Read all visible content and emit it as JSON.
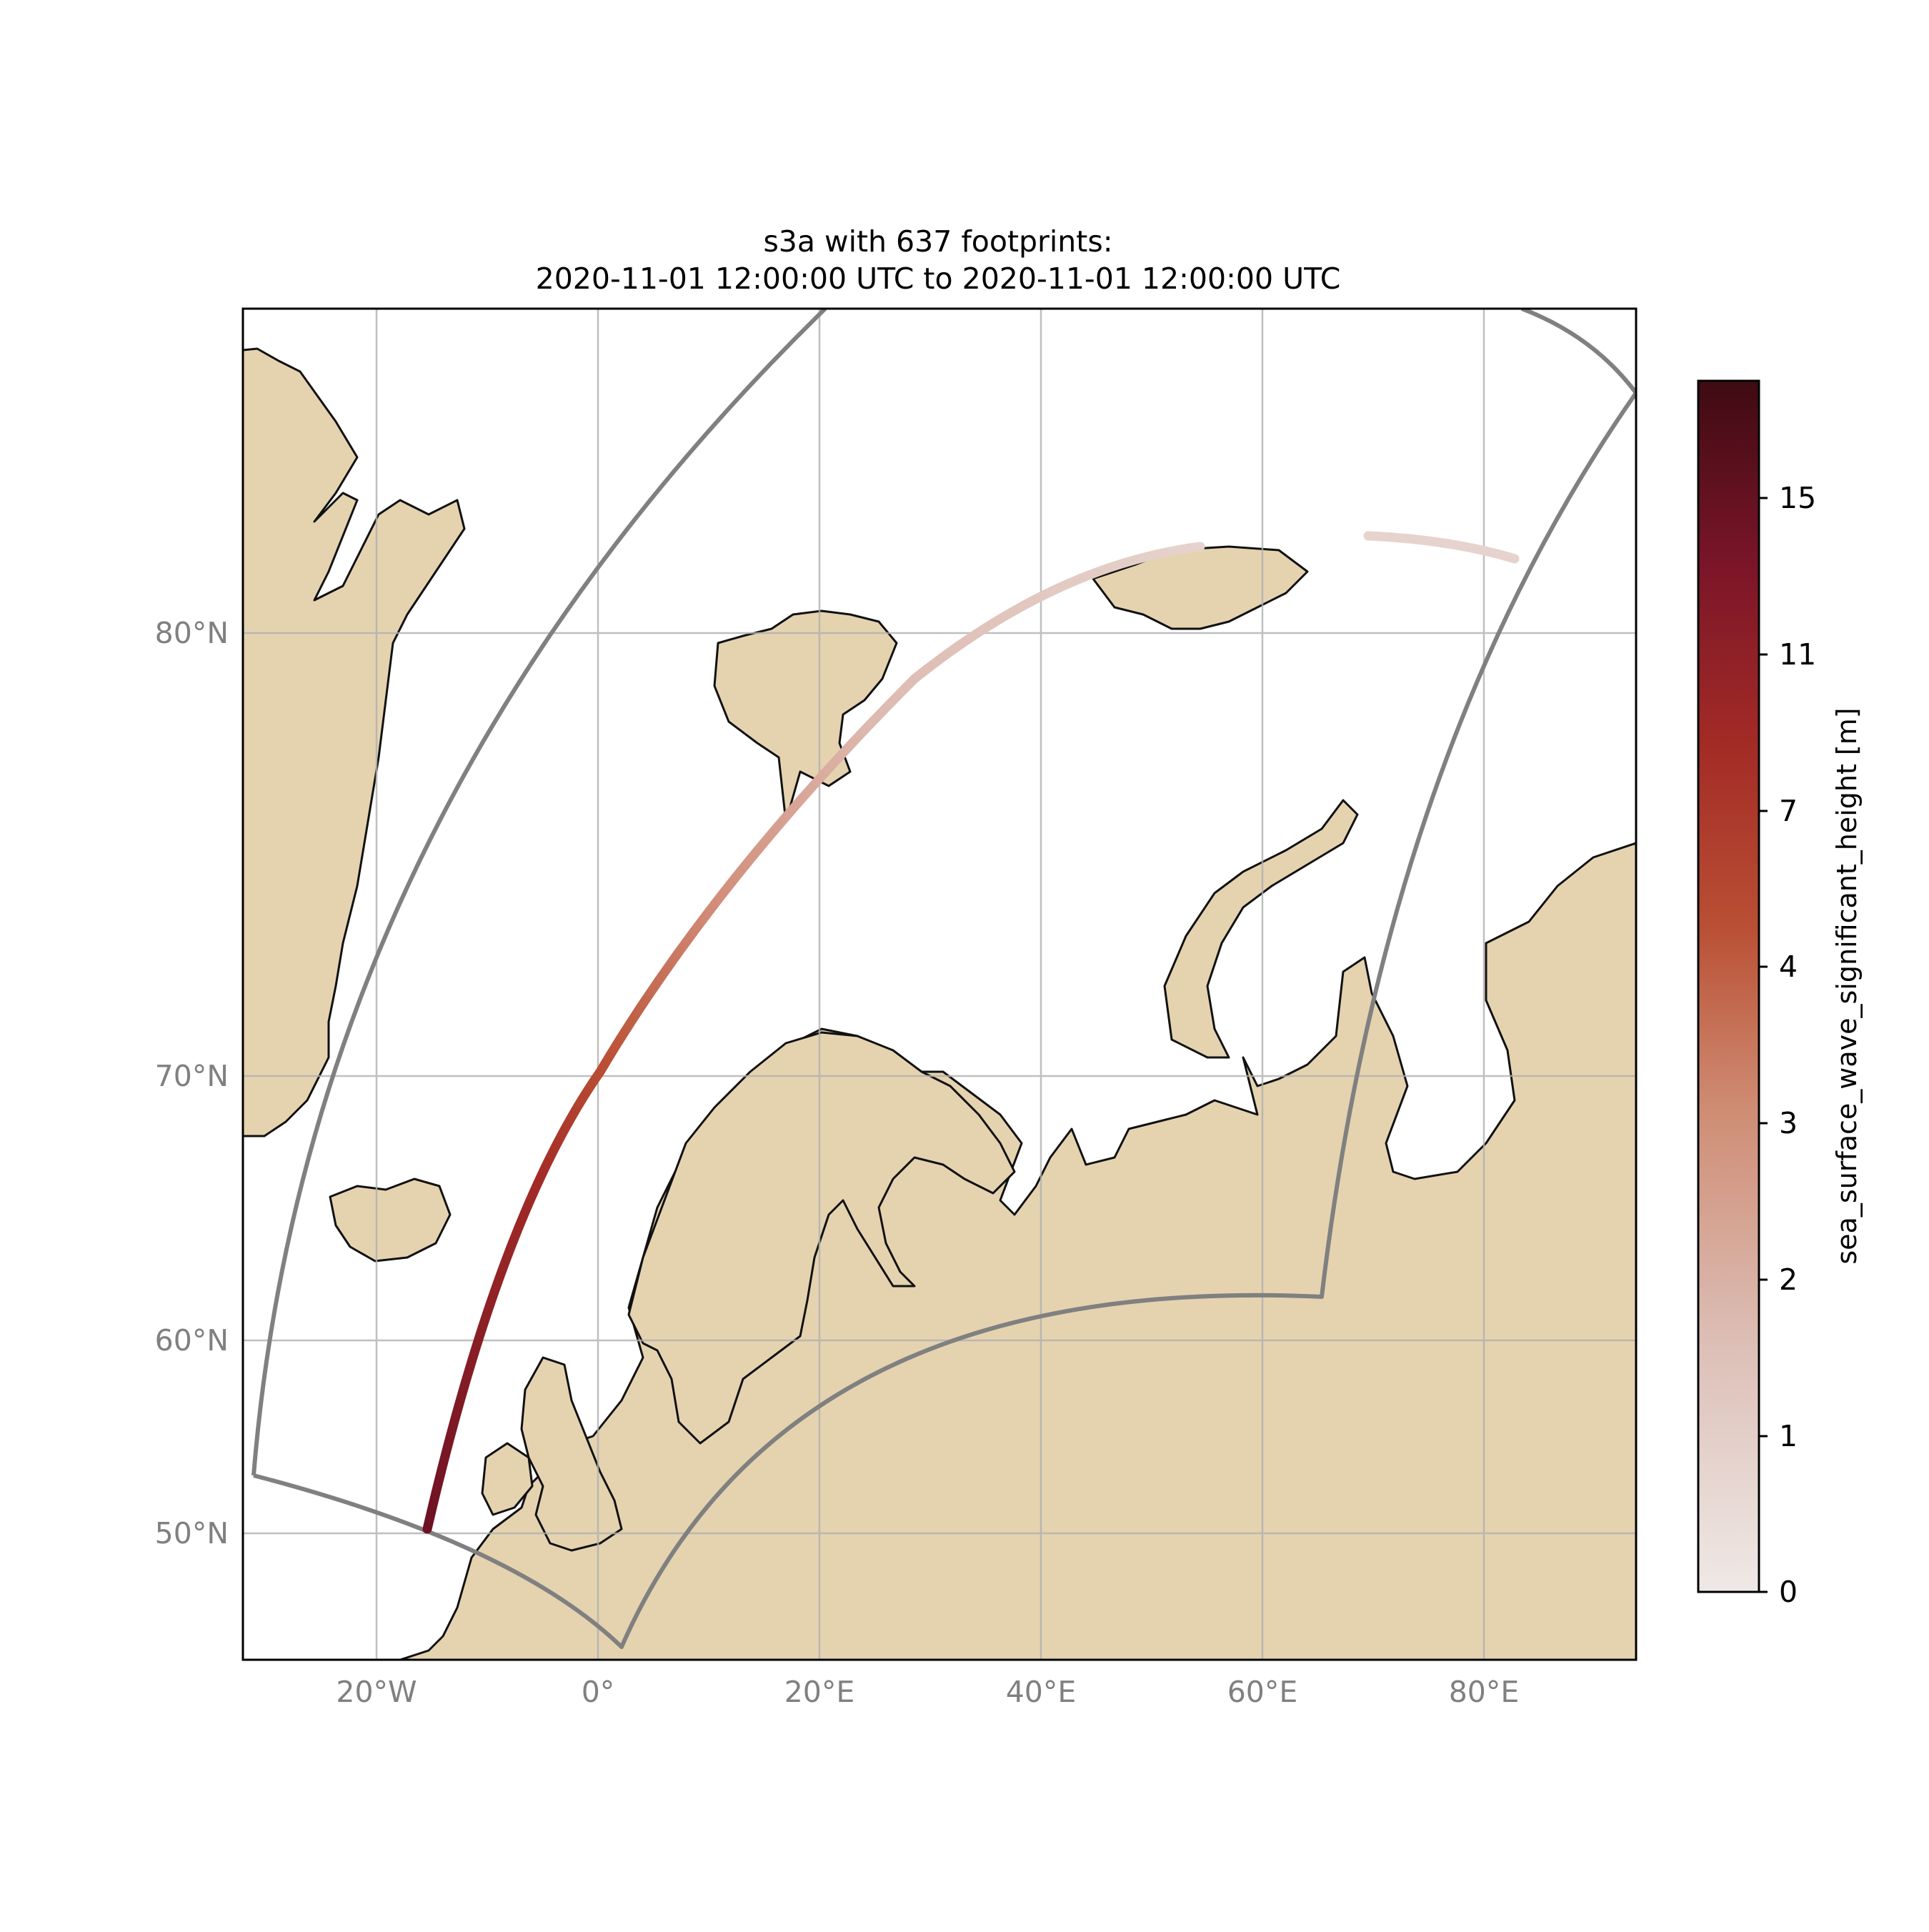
{
  "title": {
    "line1": "s3a with 637 footprints:",
    "line2": "2020-11-01 12:00:00 UTC to 2020-11-01 12:00:00 UTC"
  },
  "map": {
    "lon_labels": [
      "20°W",
      "0°",
      "20°E",
      "40°E",
      "60°E",
      "80°E"
    ],
    "lat_labels": [
      "80°N",
      "70°N",
      "60°N",
      "50°N"
    ],
    "land_color": "#e5d3b0",
    "coastline_color": "#000000",
    "gridline_color": "#b0b0b0",
    "region_outline_color": "#808080"
  },
  "colorbar": {
    "label": "sea_surface_wave_significant_height [m]",
    "tick_labels": [
      "0",
      "1",
      "2",
      "3",
      "4",
      "7",
      "11",
      "15"
    ],
    "color_low": "#efe9e6",
    "color_high": "#3e0b13"
  },
  "track": {
    "satellite": "s3a",
    "footprints": 637
  }
}
